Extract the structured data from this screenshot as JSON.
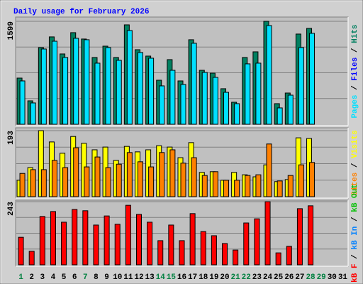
{
  "title": "Daily usage for February 2026",
  "title_color": "#0000ff",
  "categories": [
    "1",
    "2",
    "3",
    "4",
    "5",
    "6",
    "7",
    "8",
    "9",
    "10",
    "11",
    "12",
    "13",
    "14",
    "15",
    "16",
    "17",
    "18",
    "19",
    "20",
    "21",
    "22",
    "23",
    "24",
    "25",
    "26",
    "27",
    "28",
    "29",
    "30",
    "31"
  ],
  "category_colors": [
    "#008040",
    "#000000",
    "#000000",
    "#000000",
    "#000000",
    "#000000",
    "#008040",
    "#000000",
    "#000000",
    "#000000",
    "#000000",
    "#000000",
    "#000000",
    "#008040",
    "#008040",
    "#000000",
    "#000000",
    "#000000",
    "#000000",
    "#000000",
    "#008040",
    "#008040",
    "#000000",
    "#000000",
    "#000000",
    "#000000",
    "#000000",
    "#008040",
    "#008040",
    "#000000",
    "#000000"
  ],
  "chart_data": [
    {
      "type": "bar",
      "ylim": [
        0,
        1599
      ],
      "yticks": [
        1599
      ],
      "series": [
        {
          "name": "Pages",
          "color": "#00e0ff",
          "values": [
            673,
            331,
            1169,
            1290,
            1037,
            1335,
            1313,
            949,
            1191,
            993,
            1456,
            1114,
            1026,
            596,
            838,
            618,
            1258,
            805,
            728,
            496,
            320,
            938,
            949,
            1533,
            254,
            452,
            1191,
            1412,
            null,
            null,
            null
          ]
        },
        {
          "name": "Files",
          "color": "#0000ff",
          "values": [
            null,
            null,
            null,
            null,
            null,
            null,
            null,
            null,
            null,
            null,
            null,
            null,
            null,
            null,
            null,
            null,
            null,
            null,
            null,
            null,
            null,
            null,
            null,
            null,
            null,
            null,
            null,
            null,
            null,
            null,
            null
          ]
        },
        {
          "name": "Hits",
          "color": "#008060",
          "values": [
            717,
            364,
            1191,
            1357,
            1092,
            1423,
            1324,
            1037,
            1213,
            1037,
            1544,
            1158,
            1059,
            684,
            1004,
            673,
            1313,
            838,
            794,
            552,
            342,
            1037,
            1125,
            1599,
            320,
            485,
            1401,
            1489,
            null,
            null,
            null
          ]
        }
      ]
    },
    {
      "type": "bar",
      "ylim": [
        0,
        193
      ],
      "yticks": [
        193
      ],
      "series": [
        {
          "name": "Sites",
          "color": "#ff8000",
          "values": [
            68,
            79,
            79,
            106,
            85,
            143,
            87,
            116,
            85,
            95,
            129,
            102,
            87,
            129,
            137,
            98,
            114,
            62,
            73,
            48,
            48,
            62,
            64,
            154,
            46,
            62,
            93,
            100,
            null,
            null,
            null
          ]
        },
        {
          "name": "Visits",
          "color": "#ffff00",
          "values": [
            48,
            85,
            193,
            160,
            127,
            176,
            156,
            137,
            145,
            106,
            147,
            131,
            137,
            149,
            145,
            114,
            158,
            71,
            73,
            48,
            71,
            64,
            58,
            93,
            44,
            50,
            172,
            170,
            null,
            null,
            null
          ]
        }
      ]
    },
    {
      "type": "bar",
      "ylim": [
        0,
        243
      ],
      "yticks": [
        243
      ],
      "series": [
        {
          "name": "kB F",
          "color": "#ff0000",
          "values": [
            106,
            52,
            186,
            205,
            164,
            213,
            208,
            153,
            188,
            156,
            229,
            194,
            164,
            93,
            153,
            93,
            197,
            128,
            112,
            82,
            57,
            161,
            177,
            243,
            46,
            71,
            216,
            227,
            null,
            null,
            null
          ]
        },
        {
          "name": "kB In",
          "color": "#0080ff",
          "values": [
            null,
            null,
            null,
            null,
            null,
            null,
            null,
            null,
            null,
            null,
            null,
            null,
            null,
            null,
            null,
            null,
            null,
            null,
            null,
            null,
            null,
            null,
            null,
            null,
            null,
            null,
            null,
            null,
            null,
            null,
            null
          ]
        },
        {
          "name": "kB Out",
          "color": "#00c000",
          "values": [
            null,
            null,
            null,
            null,
            null,
            null,
            null,
            null,
            null,
            null,
            null,
            null,
            null,
            null,
            null,
            null,
            null,
            null,
            null,
            null,
            null,
            null,
            null,
            null,
            null,
            null,
            null,
            null,
            null,
            null,
            null
          ]
        }
      ]
    }
  ]
}
